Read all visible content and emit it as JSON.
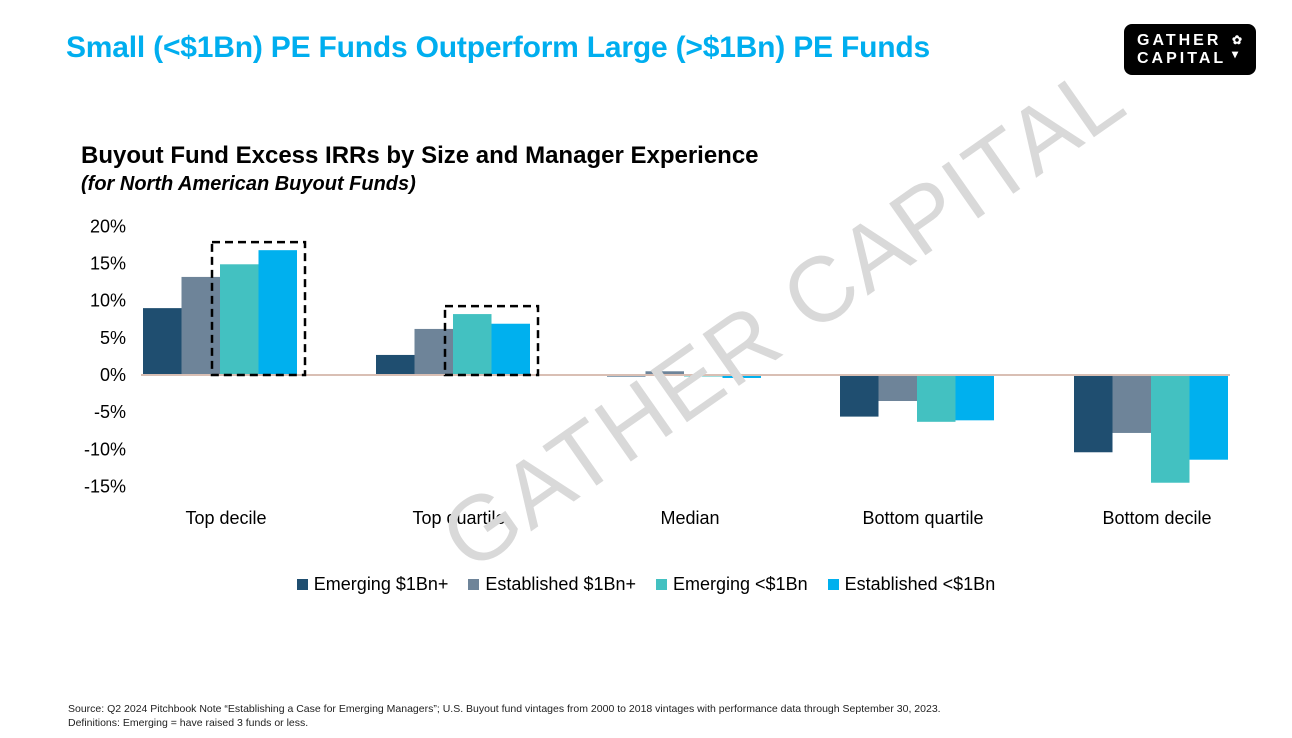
{
  "header": {
    "title": "Small (<$1Bn) PE Funds Outperform Large (>$1Bn) PE Funds",
    "logo_text": [
      "GATHER",
      "CAPITAL"
    ]
  },
  "watermark": "GATHER CAPITAL",
  "chart_data": {
    "type": "bar",
    "title": "Buyout Fund Excess IRRs by Size and Manager Experience",
    "subtitle": "(for North American Buyout Funds)",
    "categories": [
      "Top decile",
      "Top quartile",
      "Median",
      "Bottom quartile",
      "Bottom decile"
    ],
    "yticks": [
      "20%",
      "15%",
      "10%",
      "5%",
      "0%",
      "-5%",
      "-10%",
      "-15%"
    ],
    "ylim": [
      -15,
      20
    ],
    "grid": false,
    "legend_position": "bottom",
    "series": [
      {
        "name": "Emerging $1Bn+",
        "color": "#1f4e70",
        "values": [
          9.0,
          2.7,
          -0.2,
          -5.6,
          -10.4
        ]
      },
      {
        "name": "Established $1Bn+",
        "color": "#6e8499",
        "values": [
          13.2,
          6.2,
          0.5,
          -3.5,
          -7.8
        ]
      },
      {
        "name": "Emerging <$1Bn",
        "color": "#43c1c1",
        "values": [
          14.9,
          8.2,
          -0.2,
          -6.3,
          -14.5
        ]
      },
      {
        "name": "Established <$1Bn",
        "color": "#00b0ee",
        "values": [
          16.8,
          6.9,
          -0.4,
          -6.1,
          -11.4
        ]
      }
    ],
    "highlighted": [
      {
        "category": "Top decile",
        "series": [
          "Emerging <$1Bn",
          "Established <$1Bn"
        ]
      },
      {
        "category": "Top quartile",
        "series": [
          "Emerging <$1Bn",
          "Established <$1Bn"
        ]
      }
    ]
  },
  "footer": {
    "source": "Source: Q2 2024 Pitchbook Note “Establishing a Case for Emerging Managers”; U.S. Buyout fund vintages from 2000 to 2018 vintages with performance data through September 30, 2023.",
    "definitions": "Definitions: Emerging =  have raised 3 funds or less."
  }
}
